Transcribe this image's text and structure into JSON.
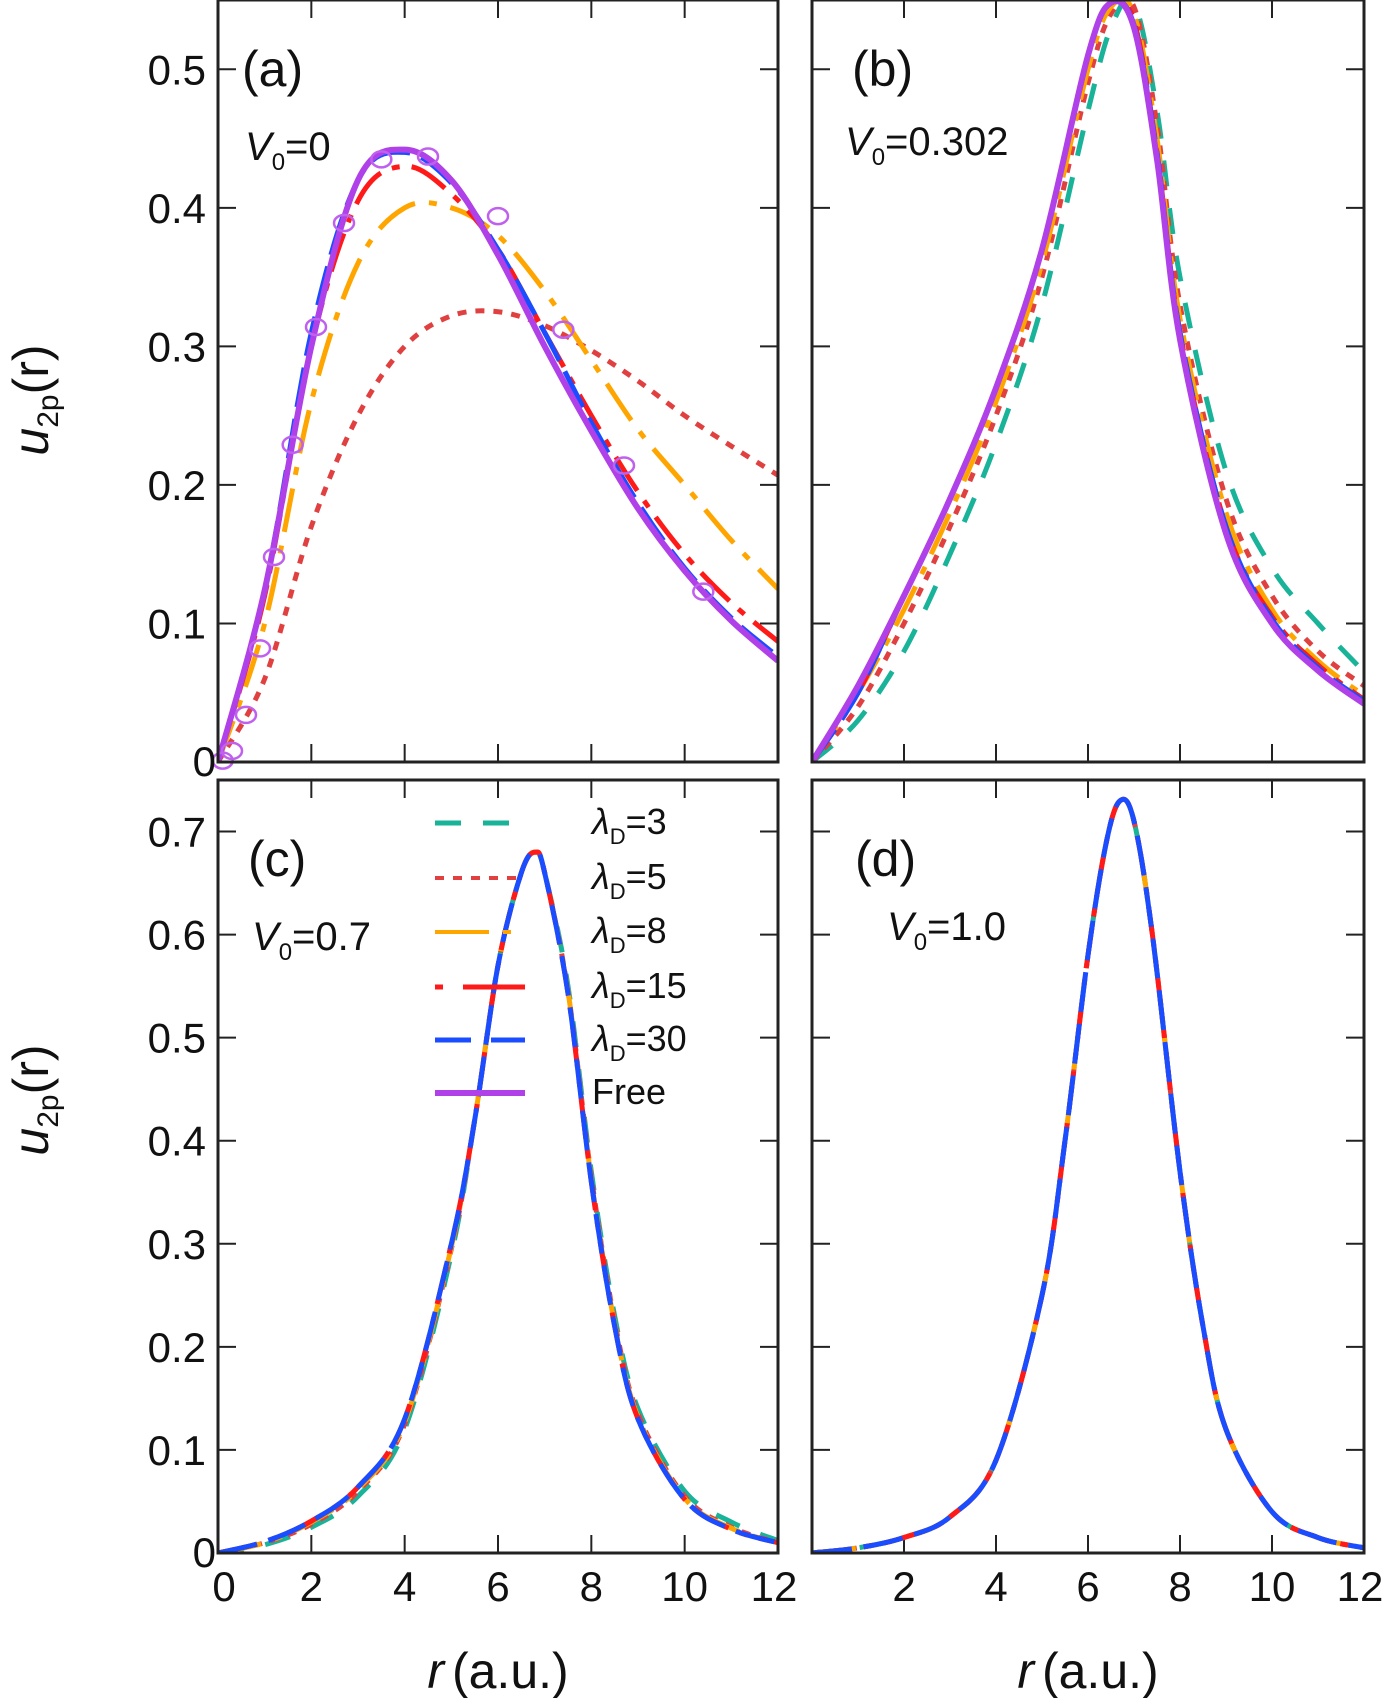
{
  "chart_data": [
    {
      "panel": "(a)",
      "type": "line",
      "annotation": {
        "symbol": "V",
        "sub": "0",
        "rest": "=0"
      },
      "xlabel": {
        "italic": "r",
        "rest": "(a.u.)"
      },
      "ylabel": {
        "italic": "u",
        "sub": "2p",
        "rest": "(r)"
      },
      "xlim": [
        0,
        12
      ],
      "ylim": [
        0,
        0.55
      ],
      "xticks": [
        "0",
        "2",
        "4",
        "6",
        "8",
        "10",
        "12"
      ],
      "yticks": [
        "0",
        "0.1",
        "0.2",
        "0.3",
        "0.4",
        "0.5"
      ],
      "series": [
        {
          "name": "λD=5",
          "x": [
            0,
            1,
            2,
            3,
            4,
            5,
            6,
            7,
            8,
            9,
            10,
            11,
            12
          ],
          "values": [
            0,
            0.06,
            0.17,
            0.25,
            0.3,
            0.322,
            0.325,
            0.315,
            0.297,
            0.275,
            0.25,
            0.228,
            0.207
          ]
        },
        {
          "name": "λD=8",
          "x": [
            0,
            1,
            2,
            3,
            4,
            5,
            6,
            7,
            8,
            9,
            10,
            11,
            12
          ],
          "values": [
            0,
            0.1,
            0.26,
            0.36,
            0.4,
            0.4,
            0.38,
            0.34,
            0.29,
            0.24,
            0.2,
            0.16,
            0.125
          ]
        },
        {
          "name": "λD=15",
          "x": [
            0,
            1,
            2,
            3,
            4,
            5,
            6,
            7,
            8,
            9,
            10,
            11,
            12
          ],
          "values": [
            0,
            0.12,
            0.3,
            0.405,
            0.43,
            0.41,
            0.37,
            0.31,
            0.25,
            0.195,
            0.15,
            0.115,
            0.087
          ]
        },
        {
          "name": "λD=30",
          "x": [
            0,
            1,
            2,
            3,
            4,
            5,
            6,
            7,
            8,
            9,
            10,
            11,
            12
          ],
          "values": [
            0,
            0.124,
            0.31,
            0.42,
            0.44,
            0.418,
            0.37,
            0.31,
            0.245,
            0.187,
            0.14,
            0.104,
            0.076
          ]
        },
        {
          "name": "Free",
          "x": [
            0,
            1,
            2,
            3,
            4,
            5,
            6,
            7,
            8,
            9,
            10,
            11,
            12
          ],
          "values": [
            0,
            0.124,
            0.3,
            0.42,
            0.442,
            0.42,
            0.366,
            0.3,
            0.239,
            0.183,
            0.138,
            0.102,
            0.073
          ]
        }
      ],
      "markers": {
        "name": "Free",
        "x": [
          0.1,
          0.3,
          0.6,
          0.9,
          1.2,
          1.6,
          2.1,
          2.7,
          3.5,
          4.5,
          6.0,
          7.4,
          8.7,
          10.4
        ],
        "values": [
          0.001,
          0.008,
          0.034,
          0.082,
          0.148,
          0.229,
          0.314,
          0.389,
          0.435,
          0.437,
          0.394,
          0.312,
          0.214,
          0.123
        ]
      }
    },
    {
      "panel": "(b)",
      "type": "line",
      "annotation": {
        "symbol": "V",
        "sub": "0",
        "rest": "=0.302"
      },
      "xlabel": {
        "italic": "r",
        "rest": "(a.u.)"
      },
      "xlim": [
        0,
        12
      ],
      "ylim": [
        0,
        0.55
      ],
      "xticks": [
        "2",
        "4",
        "6",
        "8",
        "10",
        "12"
      ],
      "series": [
        {
          "name": "λD=3",
          "x": [
            0,
            1,
            2,
            3,
            4,
            5,
            6,
            6.5,
            7,
            7.5,
            8,
            9,
            10,
            11,
            12
          ],
          "values": [
            0,
            0.03,
            0.08,
            0.15,
            0.23,
            0.33,
            0.47,
            0.53,
            0.548,
            0.47,
            0.35,
            0.21,
            0.14,
            0.1,
            0.065
          ]
        },
        {
          "name": "λD=5",
          "x": [
            0,
            1,
            2,
            3,
            4,
            5,
            6,
            6.5,
            7,
            7.5,
            8,
            9,
            10,
            11,
            12
          ],
          "values": [
            0,
            0.04,
            0.1,
            0.17,
            0.25,
            0.35,
            0.49,
            0.54,
            0.545,
            0.46,
            0.33,
            0.19,
            0.12,
            0.08,
            0.055
          ]
        },
        {
          "name": "λD=8",
          "x": [
            0,
            1,
            2,
            3,
            4,
            5,
            6,
            6.5,
            7,
            7.5,
            8,
            9,
            10,
            11,
            12
          ],
          "values": [
            0,
            0.05,
            0.11,
            0.18,
            0.26,
            0.36,
            0.5,
            0.545,
            0.54,
            0.45,
            0.32,
            0.18,
            0.11,
            0.073,
            0.048
          ]
        },
        {
          "name": "λD=15",
          "x": [
            0,
            1,
            2,
            3,
            4,
            5,
            6,
            6.5,
            7,
            7.5,
            8,
            9,
            10,
            11,
            12
          ],
          "values": [
            0,
            0.05,
            0.12,
            0.19,
            0.27,
            0.37,
            0.51,
            0.548,
            0.535,
            0.44,
            0.31,
            0.17,
            0.105,
            0.07,
            0.045
          ]
        },
        {
          "name": "λD=30",
          "x": [
            0,
            1,
            2,
            3,
            4,
            5,
            6,
            6.5,
            7,
            7.5,
            8,
            9,
            10,
            11,
            12
          ],
          "values": [
            0,
            0.05,
            0.12,
            0.19,
            0.27,
            0.37,
            0.51,
            0.548,
            0.532,
            0.44,
            0.31,
            0.17,
            0.103,
            0.068,
            0.044
          ]
        },
        {
          "name": "Free",
          "x": [
            0,
            1,
            2,
            3,
            4,
            5,
            6,
            6.5,
            7,
            7.5,
            8,
            9,
            10,
            11,
            12
          ],
          "values": [
            0,
            0.055,
            0.12,
            0.19,
            0.27,
            0.37,
            0.51,
            0.548,
            0.53,
            0.435,
            0.305,
            0.165,
            0.1,
            0.066,
            0.042
          ]
        }
      ]
    },
    {
      "panel": "(c)",
      "type": "line",
      "annotation": {
        "symbol": "V",
        "sub": "0",
        "rest": "=0.7"
      },
      "xlabel": {
        "italic": "r",
        "rest": "(a.u.)"
      },
      "ylabel": {
        "italic": "u",
        "sub": "2p",
        "rest": "(r)"
      },
      "xlim": [
        0,
        12
      ],
      "ylim": [
        0,
        0.75
      ],
      "xticks": [
        "0",
        "2",
        "4",
        "6",
        "8",
        "10",
        "12"
      ],
      "yticks": [
        "0",
        "0.1",
        "0.2",
        "0.3",
        "0.4",
        "0.5",
        "0.6",
        "0.7"
      ],
      "series": [
        {
          "name": "λD=3",
          "x": [
            0,
            1,
            2,
            3,
            4,
            5,
            5.5,
            6,
            6.5,
            6.8,
            7,
            7.5,
            8,
            8.5,
            9,
            10,
            11,
            12
          ],
          "values": [
            0,
            0.008,
            0.025,
            0.055,
            0.12,
            0.29,
            0.42,
            0.57,
            0.66,
            0.68,
            0.66,
            0.55,
            0.37,
            0.23,
            0.14,
            0.06,
            0.03,
            0.012
          ]
        },
        {
          "name": "λD=5",
          "x": [
            0,
            1,
            2,
            3,
            4,
            5,
            5.5,
            6,
            6.5,
            6.8,
            7,
            7.5,
            8,
            8.5,
            9,
            10,
            11,
            12
          ],
          "values": [
            0,
            0.01,
            0.028,
            0.06,
            0.125,
            0.295,
            0.42,
            0.57,
            0.66,
            0.68,
            0.66,
            0.545,
            0.365,
            0.225,
            0.135,
            0.055,
            0.025,
            0.01
          ]
        },
        {
          "name": "λD=8",
          "x": [
            0,
            1,
            2,
            3,
            4,
            5,
            5.5,
            6,
            6.5,
            6.8,
            7,
            7.5,
            8,
            8.5,
            9,
            10,
            11,
            12
          ],
          "values": [
            0,
            0.01,
            0.03,
            0.062,
            0.127,
            0.297,
            0.42,
            0.57,
            0.66,
            0.68,
            0.66,
            0.545,
            0.362,
            0.222,
            0.132,
            0.053,
            0.024,
            0.01
          ]
        },
        {
          "name": "λD=15",
          "x": [
            0,
            1,
            2,
            3,
            4,
            5,
            5.5,
            6,
            6.5,
            6.8,
            7,
            7.5,
            8,
            8.5,
            9,
            10,
            11,
            12
          ],
          "values": [
            0,
            0.011,
            0.031,
            0.064,
            0.13,
            0.3,
            0.42,
            0.57,
            0.66,
            0.68,
            0.66,
            0.543,
            0.36,
            0.22,
            0.13,
            0.052,
            0.023,
            0.01
          ]
        },
        {
          "name": "λD=30",
          "x": [
            0,
            1,
            2,
            3,
            4,
            5,
            5.5,
            6,
            6.5,
            6.8,
            7,
            7.5,
            8,
            8.5,
            9,
            10,
            11,
            12
          ],
          "values": [
            0,
            0.011,
            0.031,
            0.064,
            0.13,
            0.3,
            0.42,
            0.57,
            0.66,
            0.68,
            0.66,
            0.543,
            0.36,
            0.22,
            0.13,
            0.052,
            0.023,
            0.01
          ]
        }
      ],
      "legend": {
        "placement": "top-center",
        "entries": [
          {
            "symbol": "λ",
            "sub": "D",
            "rest": "=3"
          },
          {
            "symbol": "λ",
            "sub": "D",
            "rest": "=5"
          },
          {
            "symbol": "λ",
            "sub": "D",
            "rest": "=8"
          },
          {
            "symbol": "λ",
            "sub": "D",
            "rest": "=15"
          },
          {
            "symbol": "λ",
            "sub": "D",
            "rest": "=30"
          },
          {
            "symbol": "",
            "sub": "",
            "rest": "Free"
          }
        ]
      }
    },
    {
      "panel": "(d)",
      "type": "line",
      "annotation": {
        "symbol": "V",
        "sub": "0",
        "rest": "=1.0"
      },
      "xlabel": {
        "italic": "r",
        "rest": "(a.u.)"
      },
      "xlim": [
        0,
        12
      ],
      "ylim": [
        0,
        0.75
      ],
      "xticks": [
        "2",
        "4",
        "6",
        "8",
        "10",
        "12"
      ],
      "series": [
        {
          "name": "λD=3",
          "x": [
            0,
            1,
            2,
            3,
            4,
            5,
            5.5,
            6,
            6.4,
            6.7,
            7,
            7.4,
            8,
            8.5,
            9,
            10,
            11,
            12
          ],
          "values": [
            0,
            0.005,
            0.015,
            0.035,
            0.09,
            0.25,
            0.4,
            0.58,
            0.69,
            0.73,
            0.71,
            0.6,
            0.37,
            0.22,
            0.12,
            0.04,
            0.015,
            0.005
          ]
        },
        {
          "name": "λD=5",
          "x": [
            0,
            1,
            2,
            3,
            4,
            5,
            5.5,
            6,
            6.4,
            6.7,
            7,
            7.4,
            8,
            8.5,
            9,
            10,
            11,
            12
          ],
          "values": [
            0,
            0.005,
            0.015,
            0.035,
            0.09,
            0.25,
            0.4,
            0.58,
            0.69,
            0.73,
            0.71,
            0.6,
            0.37,
            0.22,
            0.12,
            0.04,
            0.015,
            0.005
          ]
        },
        {
          "name": "λD=8",
          "x": [
            0,
            1,
            2,
            3,
            4,
            5,
            5.5,
            6,
            6.4,
            6.7,
            7,
            7.4,
            8,
            8.5,
            9,
            10,
            11,
            12
          ],
          "values": [
            0,
            0.005,
            0.015,
            0.035,
            0.09,
            0.25,
            0.4,
            0.58,
            0.69,
            0.73,
            0.71,
            0.6,
            0.37,
            0.22,
            0.12,
            0.04,
            0.015,
            0.005
          ]
        },
        {
          "name": "λD=15",
          "x": [
            0,
            1,
            2,
            3,
            4,
            5,
            5.5,
            6,
            6.4,
            6.7,
            7,
            7.4,
            8,
            8.5,
            9,
            10,
            11,
            12
          ],
          "values": [
            0,
            0.005,
            0.015,
            0.035,
            0.09,
            0.25,
            0.4,
            0.58,
            0.69,
            0.73,
            0.71,
            0.6,
            0.37,
            0.22,
            0.12,
            0.04,
            0.015,
            0.005
          ]
        },
        {
          "name": "λD=30",
          "x": [
            0,
            1,
            2,
            3,
            4,
            5,
            5.5,
            6,
            6.4,
            6.7,
            7,
            7.4,
            8,
            8.5,
            9,
            10,
            11,
            12
          ],
          "values": [
            0,
            0.005,
            0.015,
            0.035,
            0.09,
            0.25,
            0.4,
            0.58,
            0.69,
            0.73,
            0.71,
            0.6,
            0.37,
            0.22,
            0.12,
            0.04,
            0.015,
            0.005
          ]
        }
      ]
    }
  ],
  "styles": {
    "λD=3": {
      "color": "#19b39a",
      "dash": "26 22"
    },
    "λD=5": {
      "color": "#e0403f",
      "dash": "9 9"
    },
    "λD=8": {
      "color": "#ffa500",
      "dash": "44 14 8 14"
    },
    "λD=15": {
      "color": "#ff1a1a",
      "dash": "40 12 8 12"
    },
    "λD=30": {
      "color": "#1a4dff",
      "dash": "40 12"
    },
    "Free": {
      "color": "#b040e8",
      "dash": ""
    }
  }
}
